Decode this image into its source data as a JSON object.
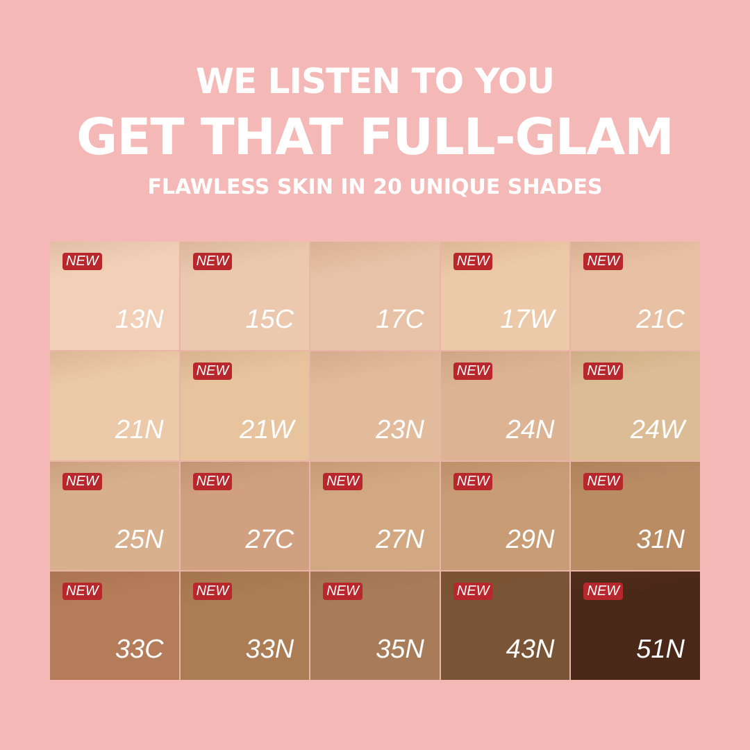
{
  "header": {
    "line1": "WE LISTEN TO YOU",
    "line2": "GET THAT FULL-GLAM",
    "line3": "FLAWLESS SKIN IN 20 UNIQUE SHADES"
  },
  "badge_label": "NEW",
  "badge_color": "#b8272b",
  "shades": [
    {
      "name": "13N",
      "color": "#f2d0b8",
      "new": true
    },
    {
      "name": "15C",
      "color": "#ebc8ae",
      "new": true
    },
    {
      "name": "17C",
      "color": "#e8c2a6",
      "new": false
    },
    {
      "name": "17W",
      "color": "#ecc9a8",
      "new": true
    },
    {
      "name": "21C",
      "color": "#e8c1a4",
      "new": true
    },
    {
      "name": "21N",
      "color": "#ecc9a8",
      "new": false
    },
    {
      "name": "21W",
      "color": "#e7c49e",
      "new": true
    },
    {
      "name": "23N",
      "color": "#e2bb9c",
      "new": false
    },
    {
      "name": "24N",
      "color": "#dcb494",
      "new": true
    },
    {
      "name": "24W",
      "color": "#dcbc94",
      "new": true
    },
    {
      "name": "25N",
      "color": "#d8b08e",
      "new": true
    },
    {
      "name": "27C",
      "color": "#d0a080",
      "new": true
    },
    {
      "name": "27N",
      "color": "#d2a882",
      "new": true
    },
    {
      "name": "29N",
      "color": "#c89c74",
      "new": true
    },
    {
      "name": "31N",
      "color": "#ba8c64",
      "new": true
    },
    {
      "name": "33C",
      "color": "#b47c58",
      "new": true
    },
    {
      "name": "33N",
      "color": "#ac7c54",
      "new": true
    },
    {
      "name": "35N",
      "color": "#a87c58",
      "new": true
    },
    {
      "name": "43N",
      "color": "#7a5436",
      "new": true
    },
    {
      "name": "51N",
      "color": "#4a2818",
      "new": true
    }
  ]
}
